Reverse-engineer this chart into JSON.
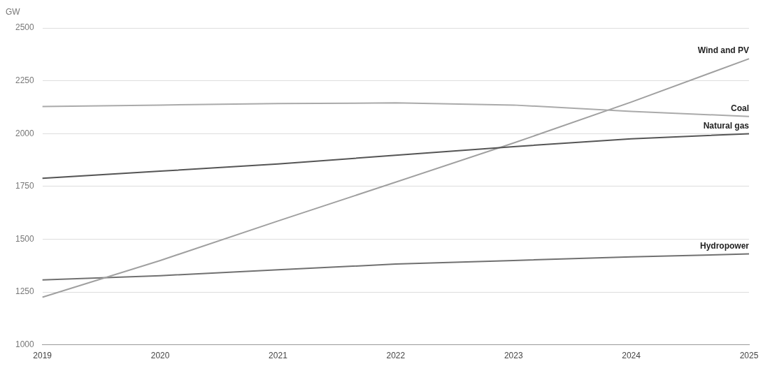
{
  "chart_data": {
    "type": "line",
    "ylabel": "GW",
    "categories": [
      "2019",
      "2020",
      "2021",
      "2022",
      "2023",
      "2024",
      "2025"
    ],
    "series": [
      {
        "name": "Coal",
        "color": "#aaaaaa",
        "values": [
          2128,
          2135,
          2142,
          2145,
          2135,
          2105,
          2081
        ]
      },
      {
        "name": "Natural gas",
        "color": "#555555",
        "values": [
          1788,
          1822,
          1856,
          1897,
          1938,
          1975,
          1999
        ]
      },
      {
        "name": "Wind and PV",
        "color": "#a0a0a0",
        "values": [
          1225,
          1399,
          1586,
          1770,
          1955,
          2149,
          2354
        ]
      },
      {
        "name": "Hydropower",
        "color": "#707070",
        "values": [
          1307,
          1327,
          1355,
          1382,
          1399,
          1416,
          1430
        ]
      }
    ],
    "ylim": [
      1000,
      2500
    ],
    "yticks": [
      1000,
      1250,
      1500,
      1750,
      2000,
      2250,
      2500
    ],
    "grid": "y",
    "legend": false,
    "marker": "none",
    "line_style": "solid"
  }
}
